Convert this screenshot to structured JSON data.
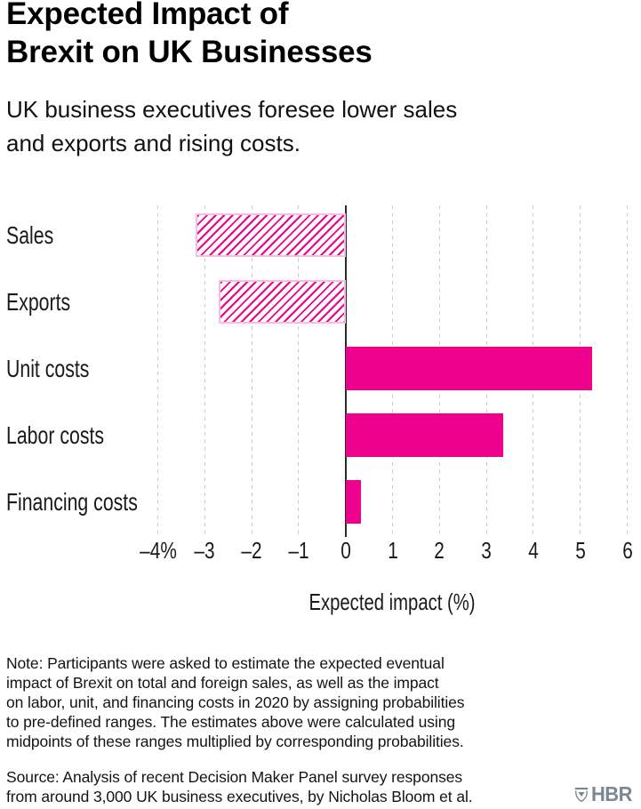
{
  "header": {
    "title": "Expected Impact of\nBrexit on UK Businesses",
    "subtitle": "UK business executives foresee lower sales\nand exports and rising costs."
  },
  "chart_data": {
    "type": "bar",
    "orientation": "horizontal",
    "categories": [
      "Sales",
      "Exports",
      "Unit costs",
      "Labor costs",
      "Financing costs"
    ],
    "values": [
      -3.2,
      -2.7,
      5.25,
      3.35,
      0.33
    ],
    "bar_styles": [
      "hatched",
      "hatched",
      "solid",
      "solid",
      "solid"
    ],
    "xticks": [
      -4,
      -3,
      -2,
      -1,
      0,
      1,
      2,
      3,
      4,
      5,
      6
    ],
    "xtick_labels": [
      "–4%",
      "–3",
      "–2",
      "–1",
      "0",
      "1",
      "2",
      "3",
      "4",
      "5",
      "6"
    ],
    "xlim": [
      -4,
      6
    ],
    "xlabel": "Expected impact (%)",
    "grid": "vertical-dashed",
    "legend": "none",
    "colors": {
      "bar_solid": "#EC008C",
      "hatch_stripe": "#EC008C",
      "hatch_border": "#F9BDE1",
      "gridline": "#C9C9C9",
      "zero_axis": "#2B2B2B"
    }
  },
  "footer": {
    "note": "Note: Participants were asked to estimate the expected eventual\nimpact of Brexit on total and foreign sales, as well as the impact\non labor, unit, and financing costs in 2020 by assigning probabilities\nto pre-defined ranges. The estimates above were calculated using\nmidpoints of these ranges multiplied by corresponding probabilities.",
    "source": "Source: Analysis of recent Decision Maker Panel survey responses\nfrom around 3,000 UK business executives, by Nicholas Bloom et al.",
    "logo_text": "HBR",
    "logo_color": "#7B8894"
  }
}
